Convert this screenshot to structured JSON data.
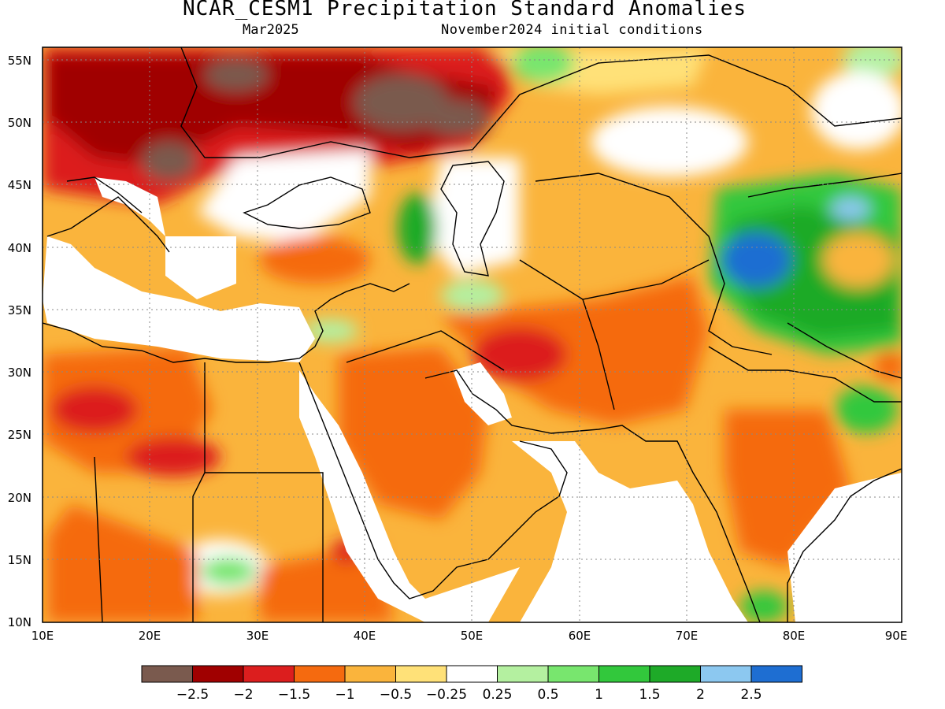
{
  "title": "NCAR_CESM1 Precipitation Standard Anomalies",
  "subtitle_left": "Mar2025",
  "subtitle_right": "November2024 initial conditions",
  "map": {
    "lon_range": [
      10,
      90
    ],
    "lat_range": [
      10,
      56
    ],
    "lon_ticks": [
      "10E",
      "20E",
      "30E",
      "40E",
      "50E",
      "60E",
      "70E",
      "80E",
      "90E"
    ],
    "lat_ticks": [
      "10N",
      "15N",
      "20N",
      "25N",
      "30N",
      "35N",
      "40N",
      "45N",
      "50N",
      "55N"
    ],
    "grid": true
  },
  "colorbar": {
    "colors": [
      "#7a5a4e",
      "#a00000",
      "#dc1e1e",
      "#f56a0f",
      "#fab43c",
      "#ffe178",
      "#ffffff",
      "#b4f0a0",
      "#78e66e",
      "#32c83c",
      "#1eaa28",
      "#8cc8f0",
      "#1e6ed2"
    ],
    "labels": [
      "−2.5",
      "−2",
      "−1.5",
      "−1",
      "−0.5",
      "−0.25",
      "0.25",
      "0.5",
      "1",
      "1.5",
      "2",
      "2.5"
    ]
  }
}
